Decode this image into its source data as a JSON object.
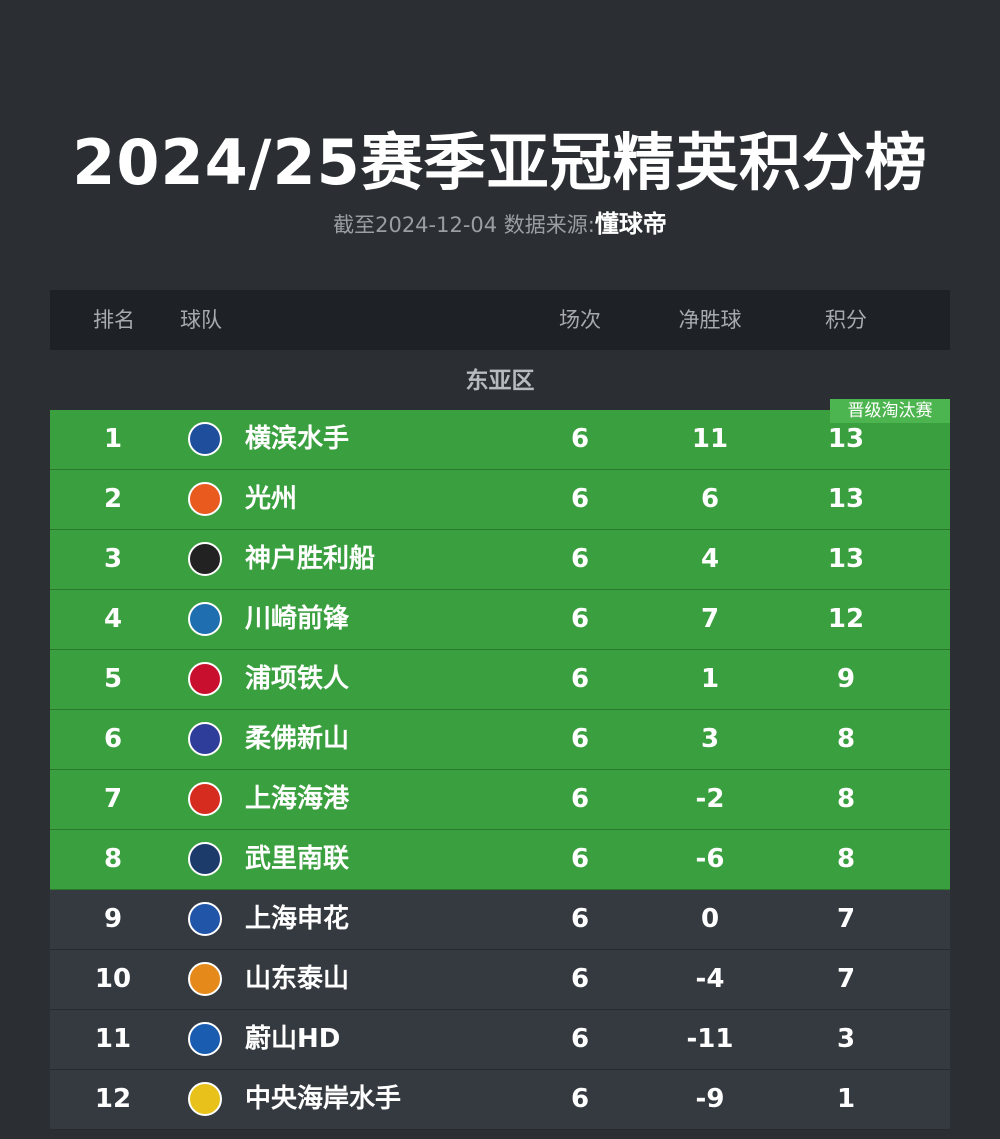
{
  "header": {
    "title": "2024/25赛季亚冠精英积分榜",
    "subtitle": "截至2024-12-04 数据来源:",
    "source": "懂球帝"
  },
  "table": {
    "columns": [
      "排名",
      "球队",
      "场次",
      "净胜球",
      "积分"
    ],
    "section": "东亚区",
    "badge": "晋级淘汰赛",
    "qualified_count": 8,
    "rows": [
      [
        1,
        "横滨水手",
        6,
        11,
        13
      ],
      [
        2,
        "光州",
        6,
        6,
        13
      ],
      [
        3,
        "神户胜利船",
        6,
        4,
        13
      ],
      [
        4,
        "川崎前锋",
        6,
        7,
        12
      ],
      [
        5,
        "浦项铁人",
        6,
        1,
        9
      ],
      [
        6,
        "柔佛新山",
        6,
        3,
        8
      ],
      [
        7,
        "上海海港",
        6,
        -2,
        8
      ],
      [
        8,
        "武里南联",
        6,
        -6,
        8
      ],
      [
        9,
        "上海申花",
        6,
        0,
        7
      ],
      [
        10,
        "山东泰山",
        6,
        -4,
        7
      ],
      [
        11,
        "蔚山HD",
        6,
        -11,
        3
      ],
      [
        12,
        "中央海岸水手",
        6,
        -9,
        1
      ]
    ]
  }
}
